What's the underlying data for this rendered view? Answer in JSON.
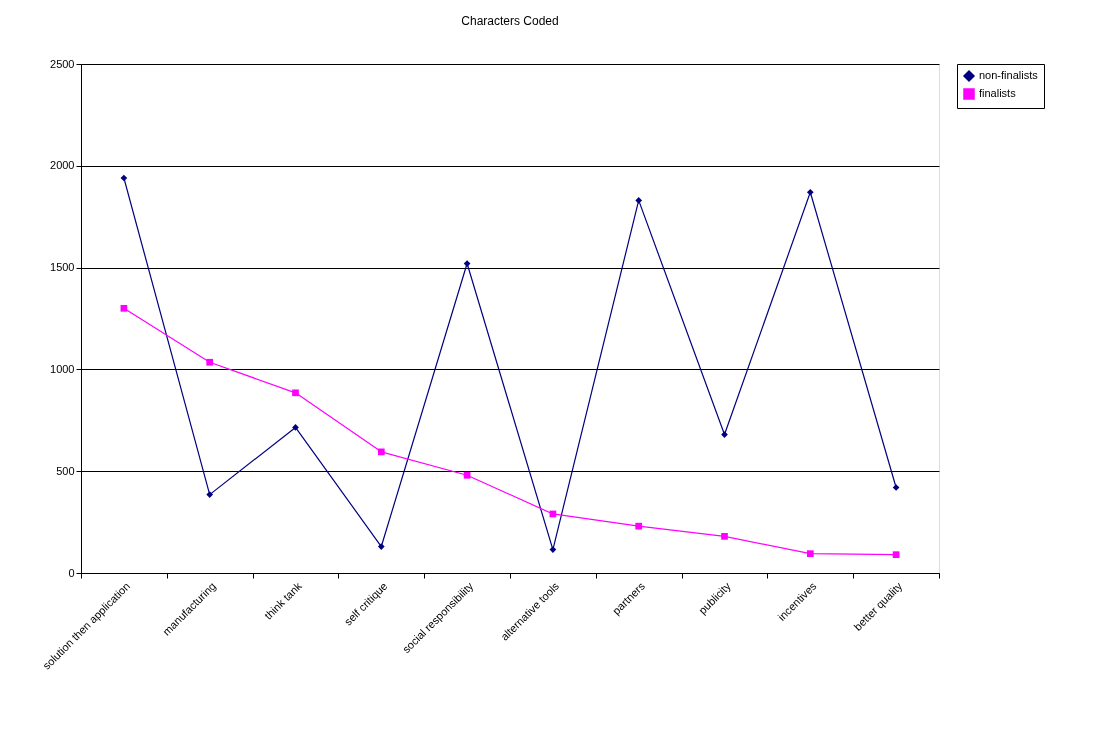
{
  "chart_data": {
    "type": "line",
    "title": "Characters Coded",
    "categories": [
      "solution then application",
      "manufacturing",
      "think tank",
      "self critique",
      "social responsibility",
      "alternative tools",
      "partners",
      "publicity",
      "incentives",
      "better quality"
    ],
    "series": [
      {
        "name": "non-finalists",
        "color": "#000080",
        "marker": "diamond",
        "values": [
          1940,
          385,
          715,
          130,
          1520,
          115,
          1830,
          680,
          1870,
          420
        ]
      },
      {
        "name": "finalists",
        "color": "#ff00ff",
        "marker": "square",
        "values": [
          1300,
          1035,
          885,
          595,
          480,
          290,
          230,
          180,
          95,
          90
        ]
      }
    ],
    "ylim": [
      0,
      2500
    ],
    "yticks": [
      0,
      500,
      1000,
      1500,
      2000,
      2500
    ],
    "grid": "y",
    "legend": "right"
  }
}
